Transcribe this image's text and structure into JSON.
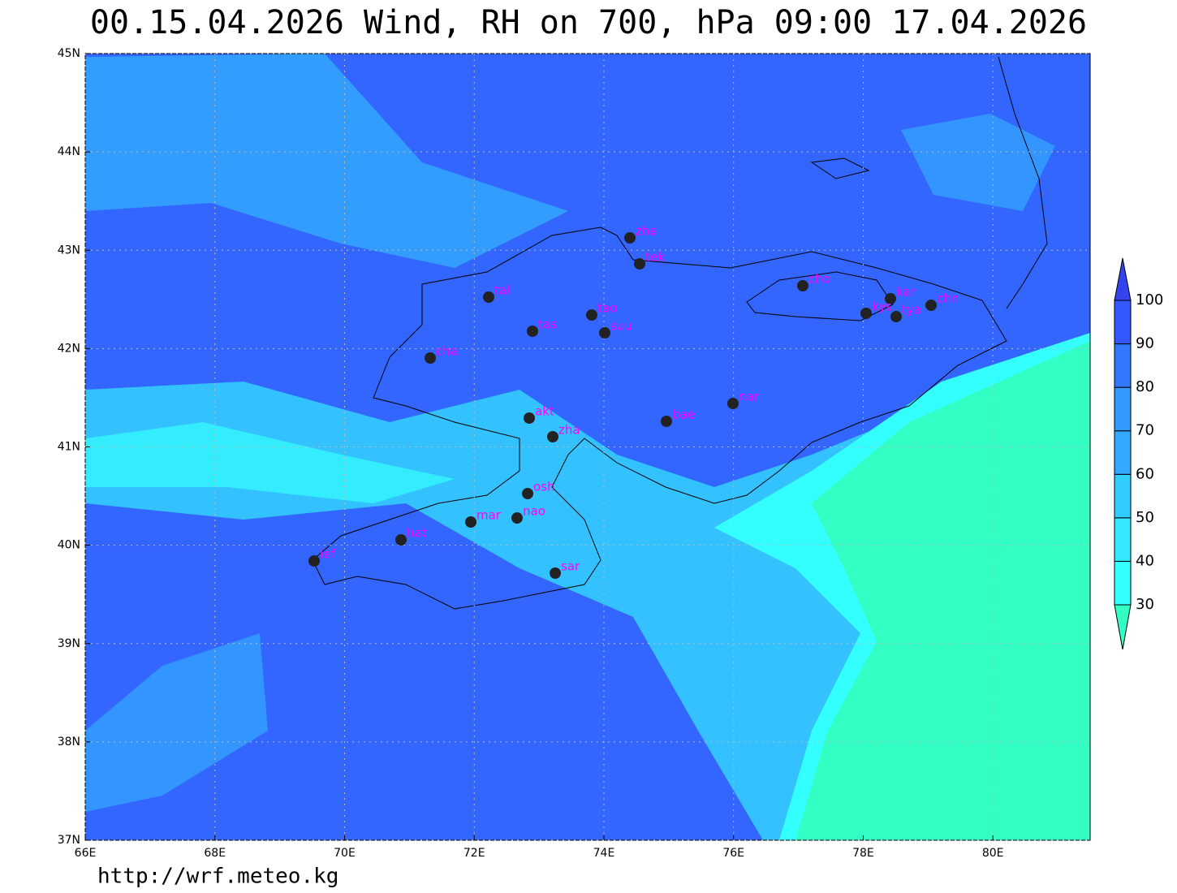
{
  "title": "00.15.04.2026 Wind, RH on 700, hPa 09:00 17.04.2026",
  "url": "http://wrf.meteo.kg",
  "map": {
    "lon_range": [
      66,
      81.5
    ],
    "lat_range": [
      37,
      45
    ],
    "lon_ticks": [
      {
        "value": 66,
        "label": "66E"
      },
      {
        "value": 68,
        "label": "68E"
      },
      {
        "value": 70,
        "label": "70E"
      },
      {
        "value": 72,
        "label": "72E"
      },
      {
        "value": 74,
        "label": "74E"
      },
      {
        "value": 76,
        "label": "76E"
      },
      {
        "value": 78,
        "label": "78E"
      },
      {
        "value": 80,
        "label": "80E"
      }
    ],
    "lat_ticks": [
      {
        "value": 37,
        "label": "37N"
      },
      {
        "value": 38,
        "label": "38N"
      },
      {
        "value": 39,
        "label": "39N"
      },
      {
        "value": 40,
        "label": "40N"
      },
      {
        "value": 41,
        "label": "41N"
      },
      {
        "value": 42,
        "label": "42N"
      },
      {
        "value": 43,
        "label": "43N"
      },
      {
        "value": 44,
        "label": "44N"
      },
      {
        "value": 45,
        "label": "45N"
      }
    ],
    "stations": [
      "zha",
      "tek",
      "cho",
      "kar",
      "kys",
      "tya",
      "chn",
      "tal",
      "tas",
      "tao",
      "suu",
      "cha",
      "nar",
      "bae",
      "akt",
      "zha",
      "osh",
      "nao",
      "mar",
      "hat",
      "ief",
      "sar"
    ],
    "colorbar": {
      "levels": [
        30,
        40,
        50,
        60,
        70,
        80,
        90,
        100
      ],
      "colors": [
        "#33ffc4",
        "#33ffff",
        "#33e8ff",
        "#33ccff",
        "#33aaff",
        "#3399ff",
        "#3377ff",
        "#3358ff",
        "#3344ee"
      ]
    }
  }
}
